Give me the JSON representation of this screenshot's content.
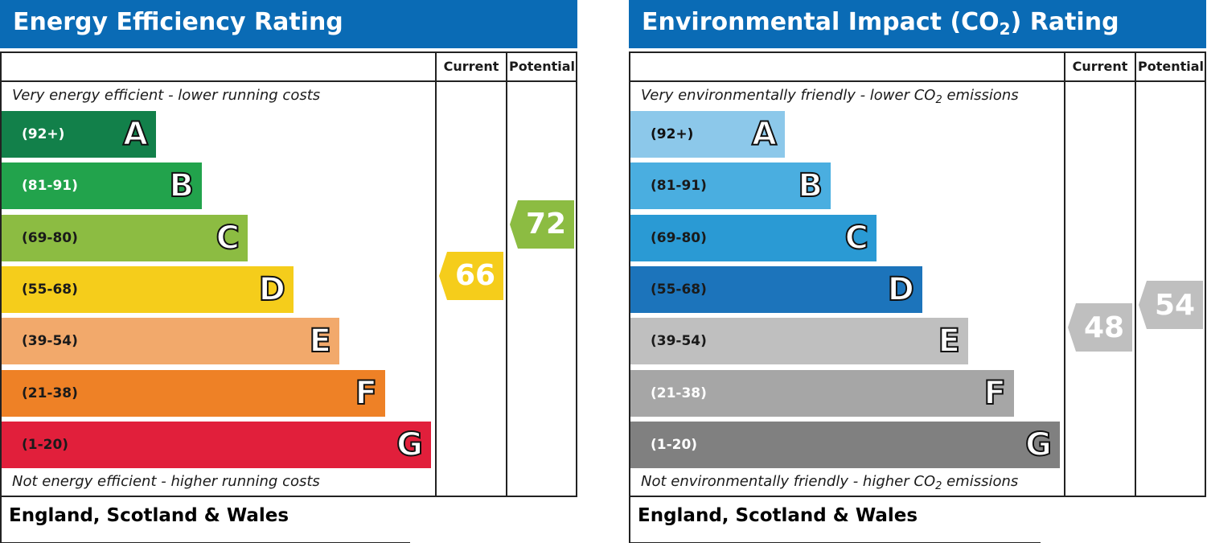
{
  "chart_data": [
    {
      "type": "bar",
      "id": "energy",
      "title": "Energy Efficiency Rating",
      "column_headers": [
        "Current",
        "Potential"
      ],
      "top_label": "Very energy efficient - lower running costs",
      "bottom_label": "Not energy efficient - higher running costs",
      "region": "England, Scotland & Wales",
      "bands": [
        {
          "letter": "A",
          "range": "(92+)",
          "color": "#12804a",
          "text_color": "#ffffff"
        },
        {
          "letter": "B",
          "range": "(81-91)",
          "color": "#22a34c",
          "text_color": "#ffffff"
        },
        {
          "letter": "C",
          "range": "(69-80)",
          "color": "#8cbc42",
          "text_color": "#1a1a1a"
        },
        {
          "letter": "D",
          "range": "(55-68)",
          "color": "#f5cd1b",
          "text_color": "#1a1a1a"
        },
        {
          "letter": "E",
          "range": "(39-54)",
          "color": "#f2a96b",
          "text_color": "#1a1a1a"
        },
        {
          "letter": "F",
          "range": "(21-38)",
          "color": "#ee8126",
          "text_color": "#1a1a1a"
        },
        {
          "letter": "G",
          "range": "(1-20)",
          "color": "#e11f3b",
          "text_color": "#1a1a1a"
        }
      ],
      "current": {
        "value": 66,
        "band": "D",
        "color": "#f5cd1b"
      },
      "potential": {
        "value": 72,
        "band": "C",
        "color": "#8cbc42"
      }
    },
    {
      "type": "bar",
      "id": "environment",
      "title_parts": [
        "Environmental Impact (CO",
        "2",
        ") Rating"
      ],
      "column_headers": [
        "Current",
        "Potential"
      ],
      "top_label_parts": [
        "Very environmentally friendly - lower CO",
        "2",
        " emissions"
      ],
      "bottom_label_parts": [
        "Not environmentally friendly - higher CO",
        "2",
        " emissions"
      ],
      "region": "England, Scotland & Wales",
      "bands": [
        {
          "letter": "A",
          "range": "(92+)",
          "color": "#8cc8ea",
          "text_color": "#111111"
        },
        {
          "letter": "B",
          "range": "(81-91)",
          "color": "#4aaee0",
          "text_color": "#1a1a1a"
        },
        {
          "letter": "C",
          "range": "(69-80)",
          "color": "#2a9ad4",
          "text_color": "#1a1a1a"
        },
        {
          "letter": "D",
          "range": "(55-68)",
          "color": "#1c74bb",
          "text_color": "#1a1a1a"
        },
        {
          "letter": "E",
          "range": "(39-54)",
          "color": "#bfbfbf",
          "text_color": "#1a1a1a"
        },
        {
          "letter": "F",
          "range": "(21-38)",
          "color": "#a6a6a6",
          "text_color": "#ffffff"
        },
        {
          "letter": "G",
          "range": "(1-20)",
          "color": "#808080",
          "text_color": "#ffffff"
        }
      ],
      "current": {
        "value": 48,
        "band": "E",
        "color": "#bfbfbf"
      },
      "potential": {
        "value": 54,
        "band": "E",
        "color": "#bfbfbf"
      }
    }
  ]
}
